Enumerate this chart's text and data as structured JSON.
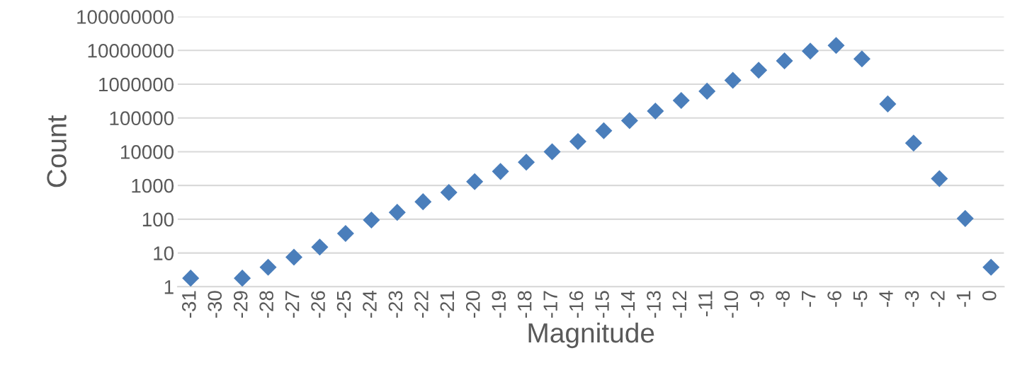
{
  "chart_data": {
    "type": "scatter",
    "xlabel": "Magnitude",
    "ylabel": "Count",
    "categories": [
      "-31",
      "-30",
      "-29",
      "-28",
      "-27",
      "-26",
      "-25",
      "-24",
      "-23",
      "-22",
      "-21",
      "-20",
      "-19",
      "-18",
      "-17",
      "-16",
      "-15",
      "-14",
      "-13",
      "-12",
      "-11",
      "-10",
      "-9",
      "-8",
      "-7",
      "-6",
      "-5",
      "-4",
      "-3",
      "-2",
      "-1",
      "0"
    ],
    "series": [
      {
        "color": "#4a7ebb",
        "values": [
          1.8,
          null,
          1.8,
          3.8,
          7.5,
          15,
          38,
          95,
          160,
          330,
          620,
          1300,
          2600,
          4900,
          10000,
          20000,
          42000,
          83000,
          160000,
          330000,
          620000,
          1300000,
          2600000,
          4900000,
          9500000,
          14000000,
          5600000,
          260000,
          18000,
          1600,
          105,
          3.8
        ]
      }
    ],
    "log": "y",
    "ylim": [
      1,
      100000000
    ],
    "yticks": [
      1,
      10,
      100,
      1000,
      10000,
      100000,
      1000000,
      10000000,
      100000000
    ],
    "grid": "y",
    "marker": "diamond",
    "legend": false
  }
}
